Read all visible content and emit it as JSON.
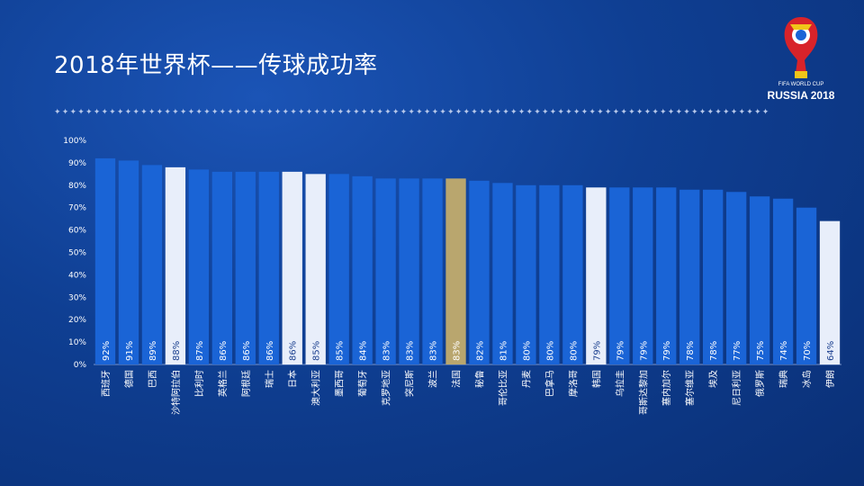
{
  "title": "2018年世界杯——传球成功率",
  "divider": "✦✦✦✦✦✦✦✦✦✦✦✦✦✦✦✦✦✦✦✦✦✦✦✦✦✦✦✦✦✦✦✦✦✦✦✦✦✦✦✦✦✦✦✦✦✦✦✦✦✦✦✦✦✦✦✦✦✦✦✦✦✦✦✦✦✦✦✦✦✦✦✦✦✦✦✦✦✦✦✦✦✦✦✦✦✦✦✦✦✦✦",
  "logo": {
    "line1": "FIFA WORLD CUP",
    "line2": "RUSSIA 2018"
  },
  "colors": {
    "bar_default": "#1a64d6",
    "bar_highlight": "#e8eefa",
    "bar_france": "#b9a66e",
    "axis_text": "#ffffff",
    "label_default": "#ffffff",
    "label_highlight": "#1a3f8f"
  },
  "chart_data": {
    "type": "bar",
    "categories": [
      "西班牙",
      "德国",
      "巴西",
      "沙特阿拉伯",
      "比利时",
      "英格兰",
      "阿根廷",
      "瑞士",
      "日本",
      "澳大利亚",
      "墨西哥",
      "葡萄牙",
      "克罗地亚",
      "突尼斯",
      "波兰",
      "法国",
      "秘鲁",
      "哥伦比亚",
      "丹麦",
      "巴拿马",
      "摩洛哥",
      "韩国",
      "乌拉圭",
      "哥斯达黎加",
      "塞内加尔",
      "塞尔维亚",
      "埃及",
      "尼日利亚",
      "俄罗斯",
      "瑞典",
      "冰岛",
      "伊朗"
    ],
    "values": [
      92,
      91,
      89,
      88,
      87,
      86,
      86,
      86,
      86,
      85,
      85,
      84,
      83,
      83,
      83,
      83,
      82,
      81,
      80,
      80,
      80,
      79,
      79,
      79,
      79,
      78,
      78,
      77,
      75,
      74,
      70,
      64
    ],
    "labels": [
      "92%",
      "91%",
      "89%",
      "88%",
      "87%",
      "86%",
      "86%",
      "86%",
      "86%",
      "85%",
      "85%",
      "84%",
      "83%",
      "83%",
      "83%",
      "83%",
      "82%",
      "81%",
      "80%",
      "80%",
      "80%",
      "79%",
      "79%",
      "79%",
      "79%",
      "78%",
      "78%",
      "77%",
      "75%",
      "74%",
      "70%",
      "64%"
    ],
    "highlight": [
      "沙特阿拉伯",
      "日本",
      "澳大利亚",
      "韩国",
      "伊朗"
    ],
    "special": [
      "法国"
    ],
    "yticks": [
      "0%",
      "10%",
      "20%",
      "30%",
      "40%",
      "50%",
      "60%",
      "70%",
      "80%",
      "90%",
      "100%"
    ],
    "ylim": [
      0,
      100
    ],
    "legend": "none",
    "grid": false
  }
}
